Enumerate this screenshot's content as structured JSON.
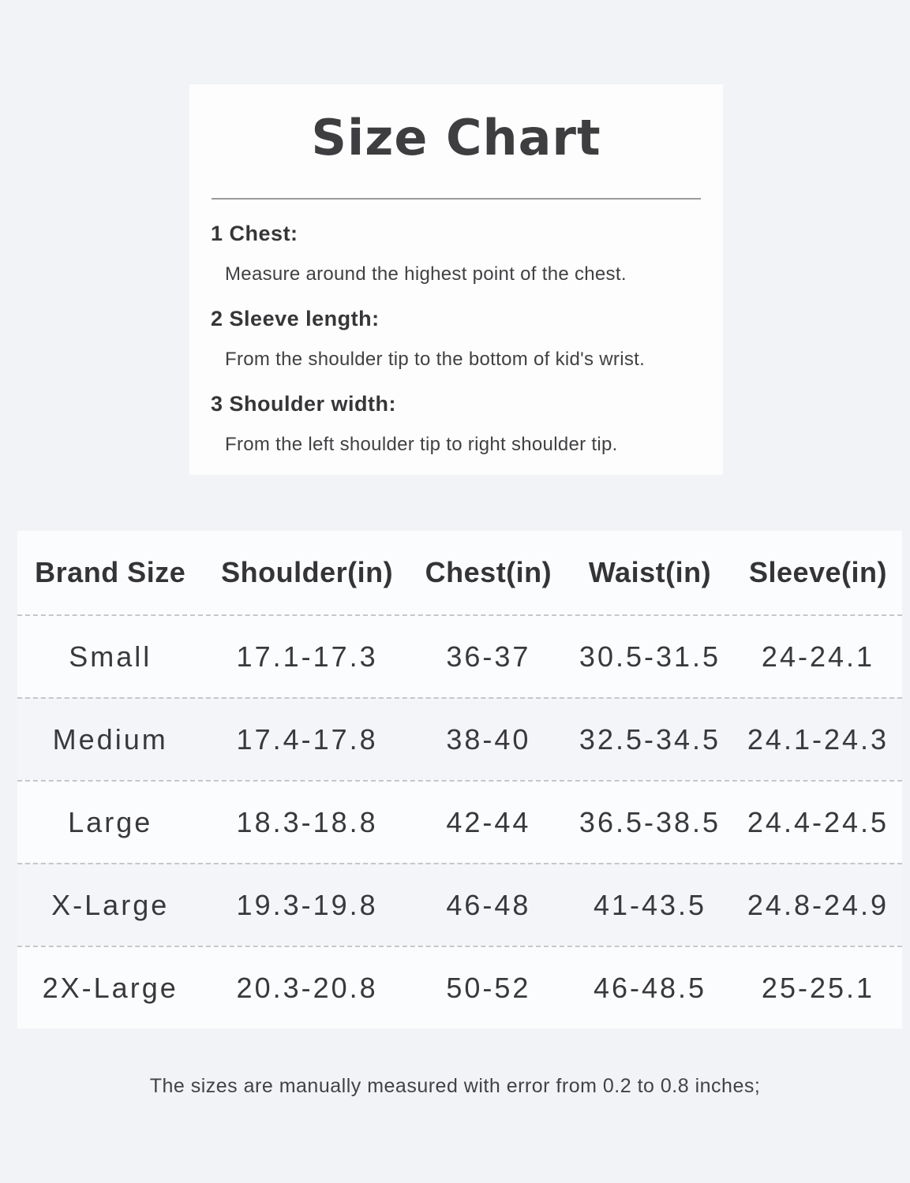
{
  "card": {
    "title": "Size Chart",
    "instructions": [
      {
        "number": "1",
        "label": "Chest:",
        "description": "Measure around the highest point of the chest."
      },
      {
        "number": "2",
        "label": "Sleeve length:",
        "description": "From the shoulder tip to the bottom of kid's wrist."
      },
      {
        "number": "3",
        "label": "Shoulder width:",
        "description": "From the left shoulder tip to right shoulder tip."
      }
    ]
  },
  "size_table": {
    "columns": [
      "Brand Size",
      "Shoulder(in)",
      "Chest(in)",
      "Waist(in)",
      "Sleeve(in)"
    ],
    "rows": [
      [
        "Small",
        "17.1-17.3",
        "36-37",
        "30.5-31.5",
        "24-24.1"
      ],
      [
        "Medium",
        "17.4-17.8",
        "38-40",
        "32.5-34.5",
        "24.1-24.3"
      ],
      [
        "Large",
        "18.3-18.8",
        "42-44",
        "36.5-38.5",
        "24.4-24.5"
      ],
      [
        "X-Large",
        "19.3-19.8",
        "46-48",
        "41-43.5",
        "24.8-24.9"
      ],
      [
        "2X-Large",
        "20.3-20.8",
        "50-52",
        "46-48.5",
        "25-25.1"
      ]
    ]
  },
  "footer": {
    "note": "The sizes are manually measured with error from 0.2 to 0.8 inches;"
  },
  "colors": {
    "page_bg": "#f2f3f6",
    "card_bg": "#fdfdfe",
    "table_bg": "#fbfcfd",
    "row_alt_bg": "#f4f5f8",
    "text": "#3b3b3d",
    "divider": "#9b9b9b",
    "dashed_separator": "#c7c7c9"
  }
}
